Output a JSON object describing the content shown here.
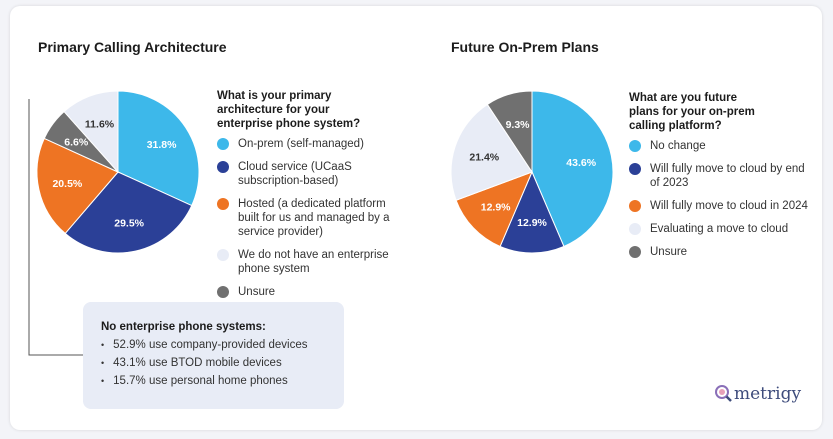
{
  "chart_data": [
    {
      "type": "pie",
      "title": "Primary Calling Architecture",
      "question": "What is your primary architecture for your enterprise phone system?",
      "categories": [
        "On-prem (self-managed)",
        "Cloud service (UCaaS subscription-based)",
        "Hosted (a dedicated platform built for us and managed by a service provider)",
        "We do not have an enterprise phone system",
        "Unsure"
      ],
      "values": [
        31.8,
        29.5,
        20.5,
        11.6,
        6.6
      ],
      "data_labels": [
        "31.8%",
        "29.5%",
        "20.5%",
        "11.6%",
        "6.6%"
      ],
      "colors": [
        "#3db8ea",
        "#2b4097",
        "#ee7423",
        "#e8ecf6",
        "#707070"
      ],
      "label_colors": [
        "#ffffff",
        "#ffffff",
        "#ffffff",
        "#333333",
        "#ffffff"
      ],
      "slice_order": [
        0,
        1,
        2,
        4,
        3
      ]
    },
    {
      "type": "pie",
      "title": "Future On-Prem Plans",
      "question": "What are you future plans for your on-prem calling platform?",
      "categories": [
        "No change",
        "Will fully move to cloud by end of 2023",
        "Will fully move to cloud in 2024",
        "Evaluating a move to cloud",
        "Unsure"
      ],
      "values": [
        43.6,
        12.9,
        12.9,
        21.4,
        9.3
      ],
      "data_labels": [
        "43.6%",
        "12.9%",
        "12.9%",
        "21.4%",
        "9.3%"
      ],
      "colors": [
        "#3db8ea",
        "#2b4097",
        "#ee7423",
        "#e8ecf6",
        "#707070"
      ],
      "label_colors": [
        "#ffffff",
        "#ffffff",
        "#ffffff",
        "#333333",
        "#ffffff"
      ],
      "slice_order": [
        0,
        1,
        2,
        3,
        4
      ]
    }
  ],
  "callout": {
    "title": "No enterprise phone systems:",
    "items": [
      "52.9% use company-provided devices",
      "43.1% use BTOD mobile devices",
      "15.7% use personal home phones"
    ]
  },
  "brand": {
    "name": "metrigy"
  }
}
